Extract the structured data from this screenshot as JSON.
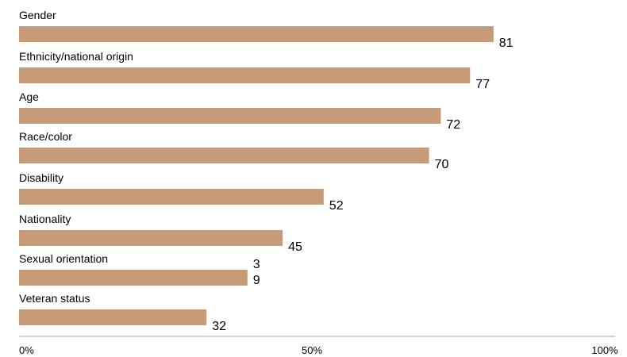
{
  "chart_data": {
    "type": "bar",
    "orientation": "horizontal",
    "categories": [
      "Gender",
      "Ethnicity/national origin",
      "Age",
      "Race/color",
      "Disability",
      "Nationality",
      "Sexual orientation",
      "Veteran status"
    ],
    "values": [
      81,
      77,
      72,
      70,
      52,
      45,
      39,
      32
    ],
    "value_labels": [
      "81",
      "77",
      "72",
      "70",
      "52",
      "45",
      "3\n9",
      "32"
    ],
    "xlim": [
      0,
      100
    ],
    "xticks": [
      "0%",
      "50%",
      "100%"
    ],
    "bar_color": "#c79b78",
    "axis_color": "#d0d0d0",
    "grid": false,
    "title": "",
    "xlabel": "",
    "ylabel": ""
  }
}
